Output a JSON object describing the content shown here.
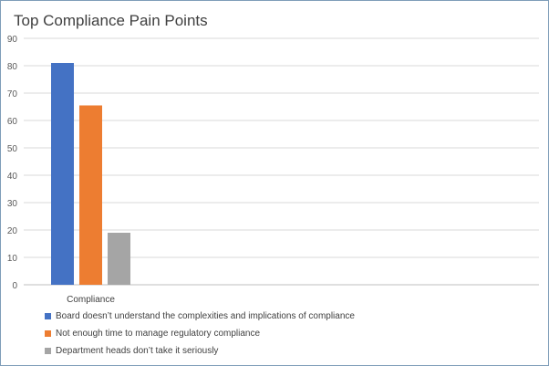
{
  "chart_data": {
    "type": "bar",
    "title": "Top Compliance Pain Points",
    "categories": [
      "Compliance"
    ],
    "series": [
      {
        "name": "Board doesn’t understand the complexities and implications of compliance",
        "values": [
          81
        ],
        "color": "#4472c4"
      },
      {
        "name": "Not enough time to manage regulatory compliance",
        "values": [
          65.5
        ],
        "color": "#ed7d31"
      },
      {
        "name": "Department heads don’t take it seriously",
        "values": [
          19
        ],
        "color": "#a5a5a5"
      }
    ],
    "ylim": [
      0,
      90
    ],
    "yticks": [
      0,
      10,
      20,
      30,
      40,
      50,
      60,
      70,
      80,
      90
    ],
    "grid": true,
    "legend_position": "bottom-left"
  }
}
